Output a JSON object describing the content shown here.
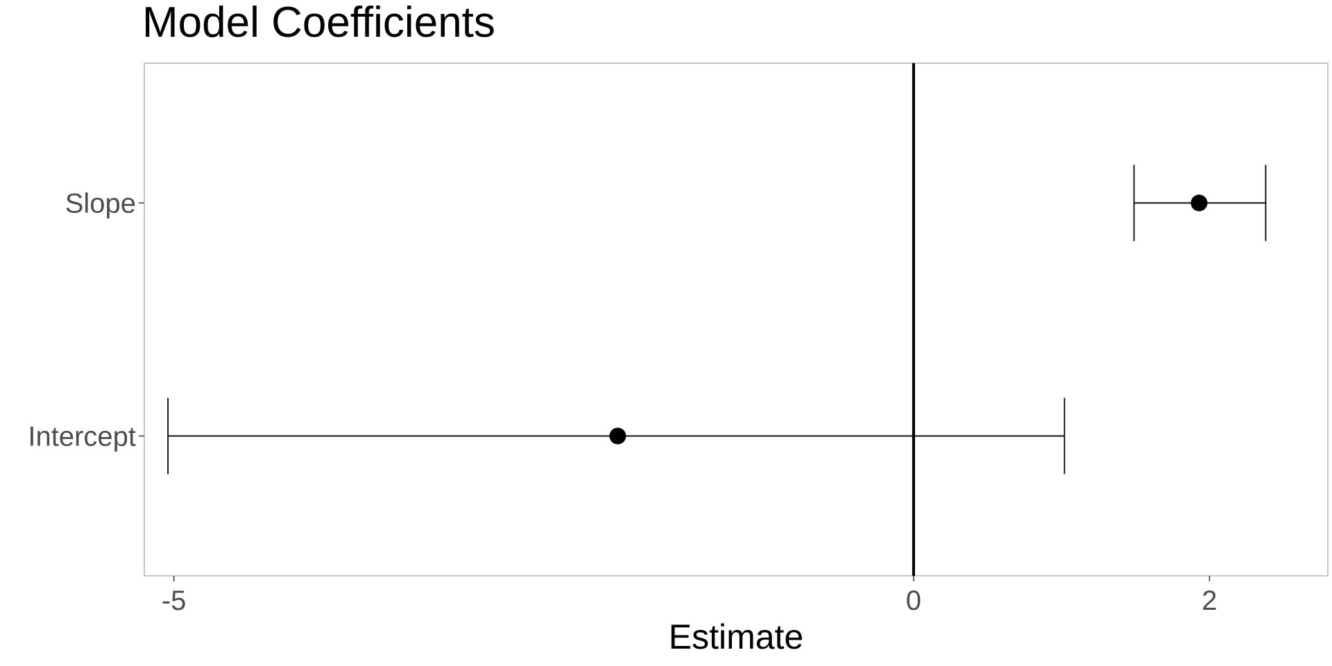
{
  "chart_data": {
    "type": "scatter",
    "title": "Model Coefficients",
    "xlabel": "Estimate",
    "ylabel": "",
    "xlim": [
      -5.2,
      2.8
    ],
    "x_ticks": [
      -5,
      0,
      2
    ],
    "x_tick_labels": [
      "-5",
      "0",
      "2"
    ],
    "categories": [
      "Intercept",
      "Slope"
    ],
    "estimates": [
      -2.0,
      1.93
    ],
    "ci_lower": [
      -5.04,
      1.49
    ],
    "ci_upper": [
      1.02,
      2.38
    ],
    "reference_line": 0,
    "grid": false,
    "colors": {
      "point": "#000000",
      "panel_border": "#b3b3b3",
      "tick_text": "#4d4d4d"
    }
  }
}
